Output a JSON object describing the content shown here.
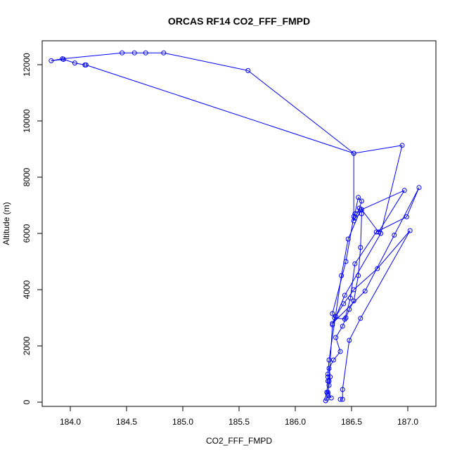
{
  "chart_data": {
    "type": "line",
    "title": "ORCAS RF14 CO2_FFF_FMPD",
    "xlabel": "CO2_FFF_FMPD",
    "ylabel": "Altitude (m)",
    "xlim": [
      183.75,
      187.25
    ],
    "ylim": [
      -150,
      12850
    ],
    "xticks": [
      184.0,
      184.5,
      185.0,
      185.5,
      186.0,
      186.5,
      187.0
    ],
    "xtick_labels": [
      "184.0",
      "184.5",
      "185.0",
      "185.5",
      "186.0",
      "186.5",
      "187.0"
    ],
    "yticks": [
      0,
      2000,
      4000,
      6000,
      8000,
      10000,
      12000
    ],
    "ytick_labels": [
      "0",
      "2000",
      "4000",
      "6000",
      "8000",
      "10000",
      "12000"
    ],
    "grid": false,
    "legend": "none",
    "marker": "open-circle",
    "series": [
      {
        "color": "#0000ff",
        "x": [
          186.27,
          186.28,
          186.29,
          186.32,
          186.29,
          186.3,
          186.31,
          186.3,
          186.34,
          186.4,
          186.36,
          186.42,
          186.45,
          186.48,
          186.52,
          186.56,
          186.58,
          186.59,
          186.59,
          186.74,
          186.97,
          186.58,
          186.47,
          186.41,
          186.3,
          186.29,
          186.29,
          186.29,
          186.28,
          186.29,
          186.3,
          186.33,
          186.44,
          186.76,
          186.95,
          186.52,
          184.14,
          184.13,
          184.04,
          183.94,
          183.83,
          183.93,
          184.46,
          184.57,
          184.67,
          184.83,
          185.58,
          186.52,
          186.52,
          186.53,
          186.55,
          186.57,
          186.59,
          186.56,
          186.53,
          186.52,
          186.45,
          186.33,
          186.35,
          186.44,
          186.49,
          186.53,
          186.72,
          186.99,
          187.1,
          186.88,
          186.62,
          186.33,
          186.36,
          186.43,
          186.52,
          186.73,
          187.02,
          186.58,
          186.48,
          186.42,
          186.42,
          186.4
        ],
        "y": [
          50,
          120,
          230,
          150,
          350,
          600,
          900,
          1200,
          1500,
          1800,
          2300,
          2700,
          3000,
          3300,
          3600,
          4500,
          5500,
          6700,
          6850,
          6050,
          7530,
          6830,
          5800,
          4500,
          1500,
          1000,
          900,
          750,
          350,
          300,
          750,
          2750,
          3800,
          6000,
          9130,
          8850,
          11990,
          11990,
          12060,
          12190,
          12140,
          12210,
          12420,
          12420,
          12420,
          12420,
          11790,
          8850,
          6450,
          6550,
          6700,
          6900,
          7150,
          7280,
          6700,
          6600,
          5000,
          3150,
          3000,
          2950,
          3700,
          4920,
          6050,
          6590,
          7630,
          5940,
          3950,
          2800,
          3050,
          3500,
          4000,
          4750,
          6100,
          2980,
          2200,
          450,
          100,
          100
        ]
      }
    ]
  }
}
